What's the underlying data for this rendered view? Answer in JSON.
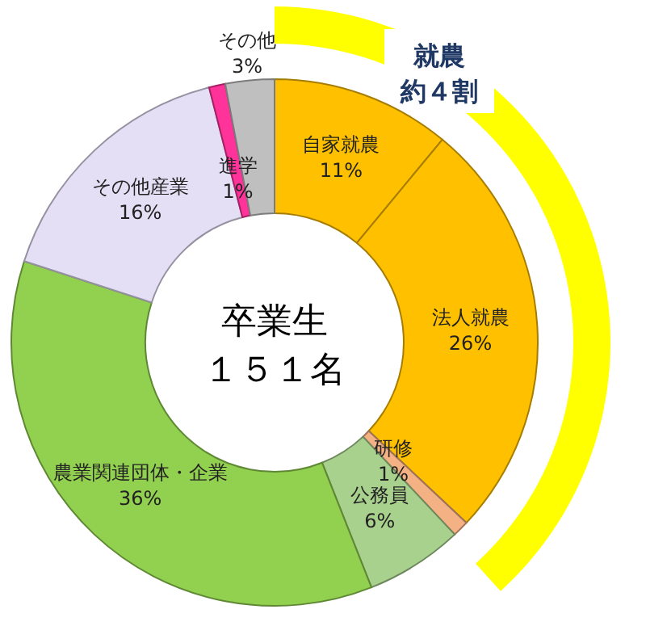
{
  "chart_data": {
    "type": "donut",
    "title": "卒業生",
    "subtitle": "１５１名",
    "categories": [
      "自家就農",
      "法人就農",
      "研修",
      "公務員",
      "農業関連団体・企業",
      "その他産業",
      "進学",
      "その他"
    ],
    "values": [
      11,
      26,
      1,
      6,
      36,
      16,
      1,
      3
    ],
    "value_labels": [
      "11%",
      "26%",
      "1%",
      "6%",
      "36%",
      "16%",
      "1%",
      "3%"
    ],
    "colors": [
      "#ffc000",
      "#ffc000",
      "#f4b183",
      "#a9d18e",
      "#92d050",
      "#e4dff5",
      "#ff3399",
      "#bfbfbf"
    ],
    "annotations": [
      "就農",
      "約４割"
    ]
  }
}
